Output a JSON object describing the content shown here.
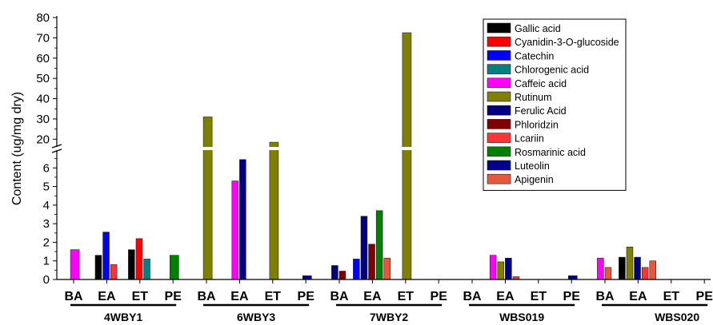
{
  "chart_data": {
    "type": "bar",
    "ylabel": "Content (ug/mg dry)",
    "xlabel": "",
    "y_axis_break": {
      "lower_range": [
        0,
        7
      ],
      "upper_range": [
        15,
        80
      ]
    },
    "lower_ticks": [
      0,
      1,
      2,
      3,
      4,
      5,
      6
    ],
    "upper_ticks": [
      20,
      30,
      40,
      50,
      60,
      70,
      80
    ],
    "fractions": [
      "BA",
      "EA",
      "ET",
      "PE"
    ],
    "groups": [
      "4WBY1",
      "6WBY3",
      "7WBY2",
      "WBS019",
      "WBS020"
    ],
    "legend_position": "top-right",
    "series": [
      {
        "name": "Gallic acid",
        "color": "#000000"
      },
      {
        "name": "Cyanidin-3-O-glucoside",
        "color": "#ff0000"
      },
      {
        "name": "Catechin",
        "color": "#0000ff"
      },
      {
        "name": "Chlorogenic acid",
        "color": "#008080"
      },
      {
        "name": "Caffeic acid",
        "color": "#ff00ff"
      },
      {
        "name": "Rutinum",
        "color": "#808000"
      },
      {
        "name": "Ferulic Acid",
        "color": "#000080"
      },
      {
        "name": "Phloridzin",
        "color": "#800000"
      },
      {
        "name": "Lcariin",
        "color": "#ff3333"
      },
      {
        "name": "Rosmarinic acid",
        "color": "#008000"
      },
      {
        "name": "Luteolin",
        "color": "#00008b"
      },
      {
        "name": "Apigenin",
        "color": "#e8573c"
      }
    ],
    "bars": [
      {
        "group": "4WBY1",
        "fraction": "BA",
        "series": "Caffeic acid",
        "value": 1.6
      },
      {
        "group": "4WBY1",
        "fraction": "EA",
        "series": "Gallic acid",
        "value": 1.3
      },
      {
        "group": "4WBY1",
        "fraction": "EA",
        "series": "Catechin",
        "value": 2.55
      },
      {
        "group": "4WBY1",
        "fraction": "EA",
        "series": "Lcariin",
        "value": 0.8
      },
      {
        "group": "4WBY1",
        "fraction": "ET",
        "series": "Gallic acid",
        "value": 1.6
      },
      {
        "group": "4WBY1",
        "fraction": "ET",
        "series": "Cyanidin-3-O-glucoside",
        "value": 2.2
      },
      {
        "group": "4WBY1",
        "fraction": "ET",
        "series": "Chlorogenic acid",
        "value": 1.1
      },
      {
        "group": "4WBY1",
        "fraction": "PE",
        "series": "Rosmarinic acid",
        "value": 1.3
      },
      {
        "group": "6WBY3",
        "fraction": "BA",
        "series": "Rutinum",
        "value": 31
      },
      {
        "group": "6WBY3",
        "fraction": "EA",
        "series": "Caffeic acid",
        "value": 5.3
      },
      {
        "group": "6WBY3",
        "fraction": "EA",
        "series": "Ferulic Acid",
        "value": 6.45
      },
      {
        "group": "6WBY3",
        "fraction": "ET",
        "series": "Rutinum",
        "value": 18.5
      },
      {
        "group": "6WBY3",
        "fraction": "PE",
        "series": "Luteolin",
        "value": 0.2
      },
      {
        "group": "7WBY2",
        "fraction": "BA",
        "series": "Ferulic Acid",
        "value": 0.75
      },
      {
        "group": "7WBY2",
        "fraction": "BA",
        "series": "Phloridzin",
        "value": 0.45
      },
      {
        "group": "7WBY2",
        "fraction": "EA",
        "series": "Catechin",
        "value": 1.1
      },
      {
        "group": "7WBY2",
        "fraction": "EA",
        "series": "Ferulic Acid",
        "value": 3.4
      },
      {
        "group": "7WBY2",
        "fraction": "EA",
        "series": "Phloridzin",
        "value": 1.9
      },
      {
        "group": "7WBY2",
        "fraction": "EA",
        "series": "Rosmarinic acid",
        "value": 3.7
      },
      {
        "group": "7WBY2",
        "fraction": "EA",
        "series": "Apigenin",
        "value": 1.15
      },
      {
        "group": "7WBY2",
        "fraction": "ET",
        "series": "Rutinum",
        "value": 72.5
      },
      {
        "group": "WBS019",
        "fraction": "EA",
        "series": "Ferulic Acid",
        "value": 1.15
      },
      {
        "group": "WBS019",
        "fraction": "EA",
        "series": "Caffeic acid",
        "value": 1.3
      },
      {
        "group": "WBS019",
        "fraction": "EA",
        "series": "Rutinum",
        "value": 0.95
      },
      {
        "group": "WBS019",
        "fraction": "EA",
        "series": "Lcariin",
        "value": 0.15
      },
      {
        "group": "WBS019",
        "fraction": "PE",
        "series": "Luteolin",
        "value": 0.2
      },
      {
        "group": "WBS020",
        "fraction": "BA",
        "series": "Caffeic acid",
        "value": 1.15
      },
      {
        "group": "WBS020",
        "fraction": "BA",
        "series": "Apigenin",
        "value": 0.65
      },
      {
        "group": "WBS020",
        "fraction": "EA",
        "series": "Gallic acid",
        "value": 1.2
      },
      {
        "group": "WBS020",
        "fraction": "EA",
        "series": "Ferulic Acid",
        "value": 1.2
      },
      {
        "group": "WBS020",
        "fraction": "EA",
        "series": "Rutinum",
        "value": 1.75
      },
      {
        "group": "WBS020",
        "fraction": "EA",
        "series": "Lcariin",
        "value": 0.65
      },
      {
        "group": "WBS020",
        "fraction": "EA",
        "series": "Apigenin",
        "value": 1.0
      }
    ]
  }
}
